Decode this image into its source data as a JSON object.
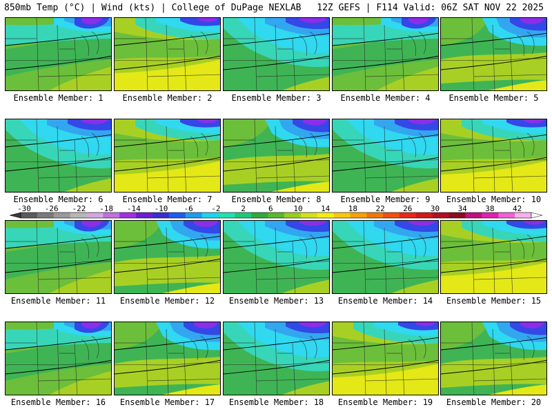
{
  "header": {
    "left": "850mb Temp (°C) | Wind (kts) | College of DuPage NEXLAB",
    "right": "12Z GEFS | F114 Valid: 06Z SAT NOV 22 2025"
  },
  "member_label": "Ensemble Member:",
  "members": [
    {
      "number": "1"
    },
    {
      "number": "2"
    },
    {
      "number": "3"
    },
    {
      "number": "4"
    },
    {
      "number": "5"
    },
    {
      "number": "6"
    },
    {
      "number": "7"
    },
    {
      "number": "8"
    },
    {
      "number": "9"
    },
    {
      "number": "10"
    },
    {
      "number": "11"
    },
    {
      "number": "12"
    },
    {
      "number": "13"
    },
    {
      "number": "14"
    },
    {
      "number": "15"
    },
    {
      "number": "16"
    },
    {
      "number": "17"
    },
    {
      "number": "18"
    },
    {
      "number": "19"
    },
    {
      "number": "20"
    }
  ],
  "colorbar": {
    "tick_labels": [
      "-30",
      "-26",
      "-22",
      "-18",
      "-14",
      "-10",
      "-6",
      "-2",
      "2",
      "6",
      "10",
      "14",
      "18",
      "22",
      "26",
      "30",
      "34",
      "38",
      "42"
    ],
    "colors": [
      "#5a5a5a",
      "#7a7a7a",
      "#9a9a9a",
      "#b6b6b6",
      "#d2a6e2",
      "#c070e0",
      "#a030e0",
      "#6a1fd0",
      "#3a2ed0",
      "#1e5cf0",
      "#1e9cf0",
      "#20d2f0",
      "#20e0b4",
      "#1ec87a",
      "#2eaa3c",
      "#5ab82c",
      "#9ccc1e",
      "#d4e01a",
      "#f4ee10",
      "#f8c80a",
      "#f8a008",
      "#f07808",
      "#f05010",
      "#e82818",
      "#d01818",
      "#b01020",
      "#8c0c20",
      "#c01080",
      "#e020b0",
      "#f060d8",
      "#f8b0ec"
    ]
  },
  "palette": {
    "purple": "#8a2ee8",
    "blue": "#3348e6",
    "sky": "#33a6f0",
    "cyan": "#30d8f0",
    "teal": "#38d6b8",
    "green": "#3fb455",
    "midgreen": "#6cbf3a",
    "lime": "#a8d024",
    "yellow": "#e4e816"
  }
}
